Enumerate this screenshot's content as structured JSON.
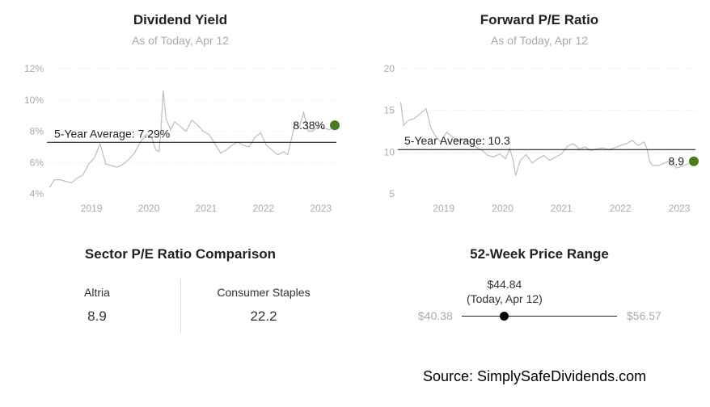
{
  "colors": {
    "series": "#bdbdbd",
    "current_dot": "#4a7c1e",
    "avg_line": "#000000"
  },
  "chart_data": [
    {
      "type": "line",
      "title": "Dividend Yield",
      "subtitle": "As of Today, Apr 12",
      "x_tick_labels": [
        "2019",
        "2020",
        "2021",
        "2022",
        "2023"
      ],
      "y_tick_labels": [
        "4%",
        "6%",
        "8%",
        "10%",
        "12%"
      ],
      "y_ticks": [
        4,
        6,
        8,
        10,
        12
      ],
      "ylim": [
        4,
        12
      ],
      "xlim": [
        2018.25,
        2023.3
      ],
      "average": 7.29,
      "average_label": "5-Year Average: 7.29%",
      "current": 8.38,
      "current_label": "8.38%",
      "grid": true,
      "series": [
        {
          "x": [
            2018.27,
            2018.35,
            2018.45,
            2018.55,
            2018.65,
            2018.75,
            2018.85,
            2018.95,
            2019.05,
            2019.15,
            2019.25,
            2019.35,
            2019.45,
            2019.55,
            2019.65,
            2019.75,
            2019.85,
            2019.95,
            2020.05,
            2020.12,
            2020.18,
            2020.21,
            2020.25,
            2020.3,
            2020.38,
            2020.45,
            2020.55,
            2020.65,
            2020.75,
            2020.85,
            2020.95,
            2021.05,
            2021.15,
            2021.25,
            2021.35,
            2021.45,
            2021.55,
            2021.65,
            2021.75,
            2021.85,
            2021.95,
            2022.05,
            2022.15,
            2022.25,
            2022.35,
            2022.42,
            2022.5,
            2022.55,
            2022.62,
            2022.7,
            2022.78,
            2022.85,
            2022.95,
            2023.05,
            2023.15,
            2023.28
          ],
          "y": [
            4.4,
            4.9,
            4.9,
            4.8,
            4.7,
            5.0,
            5.2,
            5.9,
            6.3,
            7.2,
            5.9,
            5.8,
            5.7,
            5.9,
            6.2,
            6.6,
            7.3,
            7.8,
            7.6,
            6.8,
            6.7,
            8.0,
            10.6,
            8.8,
            8.1,
            8.6,
            8.3,
            8.0,
            8.7,
            8.4,
            8.0,
            7.8,
            7.2,
            6.6,
            6.8,
            7.1,
            7.3,
            7.1,
            7.0,
            7.6,
            7.9,
            7.1,
            6.8,
            6.5,
            6.7,
            6.5,
            7.7,
            8.5,
            8.2,
            9.2,
            8.0,
            8.0,
            8.3,
            8.2,
            8.1,
            8.38
          ]
        }
      ]
    },
    {
      "type": "line",
      "title": "Forward P/E Ratio",
      "subtitle": "As of Today, Apr 12",
      "x_tick_labels": [
        "2019",
        "2020",
        "2021",
        "2022",
        "2023"
      ],
      "y_tick_labels": [
        "5",
        "10",
        "15",
        "20"
      ],
      "y_ticks": [
        5,
        10,
        15,
        20
      ],
      "ylim": [
        5,
        20
      ],
      "xlim": [
        2018.25,
        2023.3
      ],
      "average": 10.3,
      "average_label": "5-Year Average: 10.3",
      "current": 8.9,
      "current_label": "8.9",
      "grid": true,
      "series": [
        {
          "x": [
            2018.27,
            2018.32,
            2018.4,
            2018.5,
            2018.6,
            2018.7,
            2018.78,
            2018.85,
            2018.95,
            2019.05,
            2019.15,
            2019.25,
            2019.35,
            2019.45,
            2019.55,
            2019.65,
            2019.75,
            2019.85,
            2019.95,
            2020.05,
            2020.12,
            2020.18,
            2020.22,
            2020.3,
            2020.4,
            2020.5,
            2020.6,
            2020.7,
            2020.8,
            2020.9,
            2021.0,
            2021.1,
            2021.2,
            2021.3,
            2021.4,
            2021.5,
            2021.6,
            2021.7,
            2021.8,
            2021.9,
            2022.0,
            2022.1,
            2022.2,
            2022.3,
            2022.4,
            2022.45,
            2022.5,
            2022.55,
            2022.65,
            2022.75,
            2022.85,
            2022.95,
            2023.05,
            2023.15,
            2023.28
          ],
          "y": [
            16.0,
            13.2,
            13.8,
            14.0,
            14.6,
            15.2,
            13.0,
            12.0,
            11.2,
            12.4,
            11.8,
            11.3,
            11.5,
            11.2,
            10.6,
            10.2,
            9.6,
            9.4,
            9.8,
            9.2,
            10.4,
            9.0,
            7.2,
            9.0,
            9.7,
            8.7,
            9.2,
            9.6,
            9.0,
            9.4,
            9.8,
            10.7,
            11.0,
            10.4,
            10.6,
            10.2,
            10.4,
            10.5,
            10.3,
            10.5,
            10.8,
            11.0,
            11.4,
            10.8,
            11.2,
            10.4,
            8.8,
            8.4,
            8.4,
            8.7,
            9.0,
            8.1,
            8.3,
            8.6,
            8.9
          ]
        }
      ]
    }
  ],
  "sector": {
    "title": "Sector P/E Ratio Comparison",
    "company_label": "Altria",
    "company_value": "8.9",
    "sector_label": "Consumer Staples",
    "sector_value": "22.2"
  },
  "range": {
    "title": "52-Week Price Range",
    "price": "$44.84",
    "price_note": "(Today, Apr 12)",
    "low": "$40.38",
    "high": "$56.57",
    "low_value": 40.38,
    "high_value": 56.57,
    "current_value": 44.84
  },
  "source": "Source: SimplySafeDividends.com"
}
